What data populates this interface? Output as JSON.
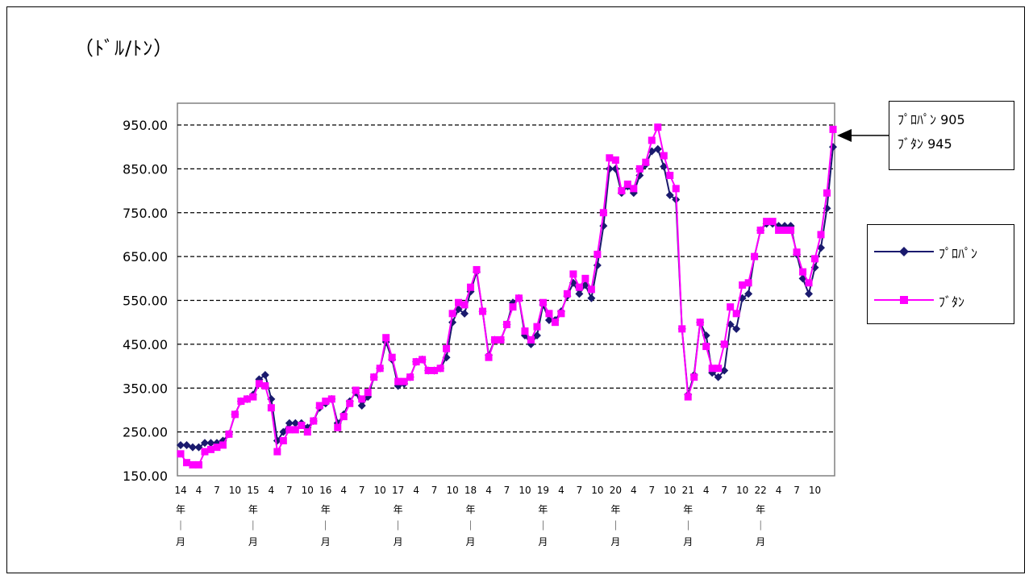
{
  "unit_label": "（ﾄﾞﾙ/ﾄﾝ）",
  "callout": {
    "line1": "ﾌﾟﾛﾊﾟﾝ 905",
    "line2": "ﾌﾞﾀﾝ 945"
  },
  "colors": {
    "propane": "#1a1a6e",
    "butane": "#ff00ff"
  },
  "chart_data": {
    "type": "line",
    "title": "",
    "xlabel": "",
    "ylabel": "（ﾄﾞﾙ/ﾄﾝ）",
    "ylim": [
      150,
      950
    ],
    "yticks": [
      "950.00",
      "850.00",
      "750.00",
      "650.00",
      "550.00",
      "450.00",
      "350.00",
      "250.00",
      "150.00"
    ],
    "grid": "horizontal dashed",
    "legend_position": "right",
    "x_tick_labels": [
      {
        "i": 0,
        "t": "14"
      },
      {
        "i": 3,
        "t": "4"
      },
      {
        "i": 6,
        "t": "7"
      },
      {
        "i": 9,
        "t": "10"
      },
      {
        "i": 12,
        "t": "15"
      },
      {
        "i": 15,
        "t": "4"
      },
      {
        "i": 18,
        "t": "7"
      },
      {
        "i": 21,
        "t": "10"
      },
      {
        "i": 24,
        "t": "16"
      },
      {
        "i": 27,
        "t": "4"
      },
      {
        "i": 30,
        "t": "7"
      },
      {
        "i": 33,
        "t": "10"
      },
      {
        "i": 36,
        "t": "17"
      },
      {
        "i": 39,
        "t": "4"
      },
      {
        "i": 42,
        "t": "7"
      },
      {
        "i": 45,
        "t": "10"
      },
      {
        "i": 48,
        "t": "18"
      },
      {
        "i": 51,
        "t": "4"
      },
      {
        "i": 54,
        "t": "7"
      },
      {
        "i": 57,
        "t": "10"
      },
      {
        "i": 60,
        "t": "19"
      },
      {
        "i": 63,
        "t": "4"
      },
      {
        "i": 66,
        "t": "7"
      },
      {
        "i": 69,
        "t": "10"
      },
      {
        "i": 72,
        "t": "20"
      },
      {
        "i": 75,
        "t": "4"
      },
      {
        "i": 78,
        "t": "7"
      },
      {
        "i": 81,
        "t": "10"
      },
      {
        "i": 84,
        "t": "21"
      },
      {
        "i": 87,
        "t": "4"
      },
      {
        "i": 90,
        "t": "7"
      },
      {
        "i": 93,
        "t": "10"
      },
      {
        "i": 96,
        "t": "22"
      },
      {
        "i": 99,
        "t": "4"
      },
      {
        "i": 102,
        "t": "7"
      },
      {
        "i": 105,
        "t": "10"
      }
    ],
    "year_marks": [
      0,
      12,
      24,
      36,
      48,
      60,
      72,
      84,
      96
    ],
    "year_suffix": [
      "年",
      "｜",
      "月"
    ],
    "series": [
      {
        "name": "ﾌﾟﾛﾊﾟﾝ",
        "values": [
          220,
          220,
          215,
          215,
          225,
          225,
          225,
          230,
          245,
          290,
          320,
          325,
          335,
          370,
          380,
          325,
          230,
          250,
          270,
          270,
          270,
          260,
          275,
          305,
          315,
          325,
          270,
          290,
          320,
          340,
          310,
          330,
          375,
          395,
          455,
          415,
          355,
          360,
          375,
          410,
          415,
          390,
          390,
          395,
          420,
          500,
          530,
          520,
          570,
          615,
          525,
          425,
          460,
          460,
          495,
          545,
          555,
          470,
          450,
          470,
          540,
          505,
          505,
          525,
          560,
          590,
          565,
          585,
          555,
          630,
          720,
          850,
          850,
          795,
          810,
          795,
          835,
          860,
          890,
          895,
          855,
          790,
          780,
          485,
          335,
          380,
          500,
          470,
          385,
          375,
          390,
          495,
          485,
          555,
          565,
          650,
          710,
          725,
          725,
          720,
          720,
          720,
          655,
          600,
          565,
          625,
          670,
          760,
          900
        ]
      },
      {
        "name": "ﾌﾞﾀﾝ",
        "values": [
          200,
          180,
          175,
          175,
          205,
          210,
          215,
          220,
          245,
          290,
          320,
          325,
          330,
          360,
          355,
          305,
          205,
          230,
          255,
          255,
          265,
          250,
          275,
          310,
          320,
          325,
          260,
          285,
          315,
          345,
          325,
          340,
          375,
          395,
          465,
          420,
          365,
          365,
          375,
          410,
          415,
          390,
          390,
          395,
          440,
          520,
          545,
          540,
          580,
          620,
          525,
          420,
          460,
          460,
          495,
          535,
          555,
          480,
          460,
          490,
          545,
          520,
          500,
          520,
          565,
          610,
          580,
          600,
          575,
          655,
          750,
          875,
          870,
          800,
          815,
          805,
          850,
          865,
          915,
          945,
          880,
          835,
          805,
          485,
          330,
          375,
          500,
          445,
          395,
          395,
          450,
          535,
          520,
          585,
          590,
          650,
          710,
          730,
          730,
          710,
          710,
          710,
          660,
          615,
          590,
          645,
          700,
          795,
          940
        ]
      }
    ]
  }
}
